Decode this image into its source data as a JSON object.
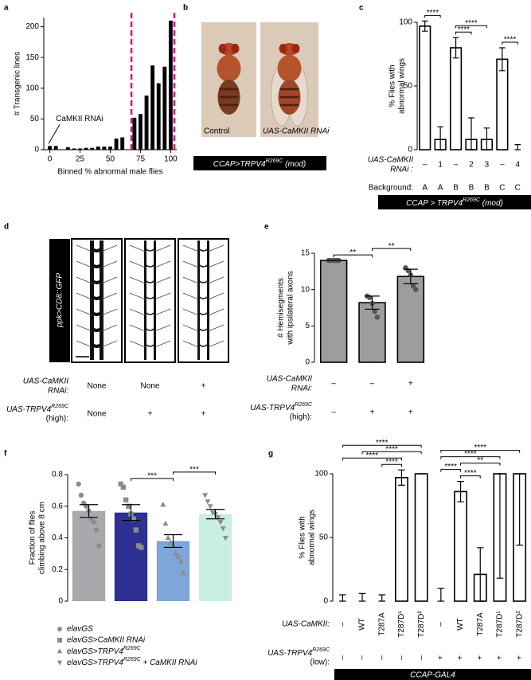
{
  "chart_data": [
    {
      "type": "histogram",
      "panel": "a",
      "ylabel": [
        "# Transgenic lines"
      ],
      "xlabel": "Binned % abnormal male flies",
      "bins": [
        -2.5,
        2.5,
        7.5,
        12.5,
        17.5,
        22.5,
        27.5,
        32.5,
        37.5,
        42.5,
        47.5,
        52.5,
        57.5,
        62.5,
        67.5,
        72.5,
        77.5,
        82.5,
        87.5,
        92.5,
        97.5,
        102.5
      ],
      "counts": [
        6,
        6,
        0,
        4,
        2,
        2,
        3,
        3,
        5,
        5,
        5,
        18,
        20,
        0,
        52,
        58,
        88,
        137,
        108,
        135,
        210
      ],
      "xlim": [
        -5,
        105
      ],
      "xticks": [
        0,
        25,
        50,
        75,
        100
      ],
      "ylim": [
        0,
        215
      ],
      "yticks": [
        0,
        50,
        100,
        150,
        200
      ],
      "color": "#000000",
      "thresholds": [
        67.5,
        103
      ],
      "threshold_color": "#e6007e",
      "annotation": "CaMKII RNAi"
    },
    {
      "type": "bar",
      "panel": "c",
      "ylabel": [
        "% Flies with",
        "abnormal wings"
      ],
      "values": [
        97,
        8,
        80,
        8,
        8,
        71,
        0
      ],
      "error_low": [
        93,
        0,
        72,
        0,
        0,
        62,
        0
      ],
      "error_high": [
        101,
        18,
        88,
        25,
        17,
        80,
        4
      ],
      "ylim": [
        0,
        100
      ],
      "yticks": [
        0,
        50,
        100
      ],
      "color": "#ffffff",
      "edge_color": "#000000",
      "rows": [
        {
          "label": [
            "UAS-CaMKII",
            "RNAi :"
          ],
          "values": [
            "–",
            "1",
            "–",
            "2",
            "3",
            "–",
            "4"
          ]
        },
        {
          "label": [
            "Background:"
          ],
          "values": [
            "A",
            "A",
            "B",
            "B",
            "B",
            "C",
            "C"
          ]
        }
      ],
      "banner": {
        "text": "CCAP > TRPV4",
        "sup": "R269C",
        "tail": " (mod)"
      },
      "significance": [
        {
          "label": "****",
          "between": [
            0,
            1
          ]
        },
        {
          "label": "****",
          "between": [
            2,
            3
          ]
        },
        {
          "label": "****",
          "between": [
            2,
            4
          ]
        },
        {
          "label": "****",
          "between": [
            5,
            6
          ]
        }
      ]
    },
    {
      "type": "bar",
      "panel": "e",
      "ylabel": [
        "# Hemisegments",
        "with ipsilateral axons"
      ],
      "values": [
        14,
        8.2,
        11.8
      ],
      "error_low": [
        14,
        7.3,
        10.8
      ],
      "error_high": [
        14,
        9.1,
        12.8
      ],
      "points": [
        [
          14,
          14,
          14,
          14,
          14
        ],
        [
          9.1,
          8.9,
          8.1,
          7,
          6.2
        ],
        [
          13,
          12.6,
          12,
          10.5,
          10
        ]
      ],
      "point_color": "#555555",
      "ylim": [
        0,
        15
      ],
      "yticks": [
        0,
        5,
        10,
        15
      ],
      "color": "#9d9d9d",
      "edge_color": "#000000",
      "rows": [
        {
          "label": [
            "UAS-CaMKII",
            "RNAi:"
          ],
          "values": [
            "–",
            "–",
            "+"
          ]
        },
        {
          "label": [
            {
              "text": "UAS-TRPV4",
              "sup": "R269C"
            },
            "(high):"
          ],
          "values": [
            "–",
            "+",
            "+"
          ]
        }
      ],
      "significance": [
        {
          "label": "**",
          "between": [
            0,
            1
          ]
        },
        {
          "label": "**",
          "between": [
            1,
            2
          ]
        }
      ]
    },
    {
      "type": "bar",
      "panel": "f",
      "ylabel": [
        "Fraction of flies",
        "climbing above 8 cm"
      ],
      "values": [
        0.57,
        0.56,
        0.38,
        0.55
      ],
      "error_low": [
        0.53,
        0.51,
        0.34,
        0.52
      ],
      "error_high": [
        0.61,
        0.61,
        0.42,
        0.58
      ],
      "colors": [
        "#a7a9ac",
        "#2e3192",
        "#7ea6d8",
        "#c8efe0"
      ],
      "edge_color": "none",
      "points": [
        [
          0.74,
          0.67,
          0.62,
          0.6,
          0.57,
          0.52,
          0.5,
          0.45,
          0.35
        ],
        [
          0.74,
          0.72,
          0.64,
          0.6,
          0.55,
          0.52,
          0.45,
          0.35,
          0.34
        ],
        [
          0.61,
          0.49,
          0.4,
          0.37,
          0.35,
          0.3,
          0.28,
          0.25,
          0.18
        ],
        [
          0.67,
          0.63,
          0.6,
          0.56,
          0.55,
          0.53,
          0.5,
          0.46,
          0.4
        ]
      ],
      "point_color": "#8c8c8c",
      "markers": [
        "circle",
        "square",
        "triangle-up",
        "triangle-down"
      ],
      "ylim": [
        0,
        0.8
      ],
      "yticks": [
        0,
        0.2,
        0.4,
        0.6,
        0.8
      ],
      "legend": [
        "elavGS",
        "elavGS>CaMKII RNAi",
        {
          "text": "elavGS>TRPV4",
          "sup": "R269C"
        },
        {
          "text": "elavGS>TRPV4",
          "sup": "R269C",
          "tail": " + CaMKII RNAi"
        }
      ],
      "significance": [
        {
          "label": "***",
          "between": [
            1,
            2
          ]
        },
        {
          "label": "***",
          "between": [
            2,
            3
          ]
        }
      ]
    },
    {
      "type": "bar",
      "panel": "g",
      "ylabel": [
        "% Flies with",
        "abnormal wings"
      ],
      "values": [
        0,
        0,
        0,
        97,
        100,
        0,
        86,
        21,
        100,
        100
      ],
      "error_low": [
        0,
        0,
        0,
        91,
        100,
        0,
        78,
        0,
        18,
        44
      ],
      "error_high": [
        5,
        6,
        5,
        103,
        100,
        10,
        94,
        42,
        100,
        100
      ],
      "ylim": [
        0,
        100
      ],
      "yticks": [
        0,
        50,
        100
      ],
      "color": "#ffffff",
      "edge_color": "#000000",
      "rows": [
        {
          "label": [
            "UAS-CaMKII:"
          ],
          "values": [
            "–",
            "WT",
            "T287A",
            "T287D¹",
            "T287D²",
            "–",
            "WT",
            "T287A",
            "T287D¹",
            "T287D²"
          ],
          "rotate": true
        },
        {
          "label": [
            {
              "text": "UAS-TRPV4",
              "sup": "R269C"
            },
            "(low):"
          ],
          "values": [
            "–",
            "–",
            "–",
            "–",
            "–",
            "+",
            "+",
            "+",
            "+",
            "+"
          ],
          "rotate": true
        }
      ],
      "banner": "CCAP-GAL4",
      "significance": [
        {
          "label": "****",
          "between": [
            0,
            4
          ]
        },
        {
          "label": "****",
          "between": [
            0,
            3
          ]
        },
        {
          "label": "****",
          "between": [
            1,
            4
          ]
        },
        {
          "label": "****",
          "between": [
            2,
            3
          ]
        },
        {
          "label": "****",
          "between": [
            5,
            9
          ]
        },
        {
          "label": "****",
          "between": [
            5,
            8
          ]
        },
        {
          "label": "**",
          "between": [
            6,
            8
          ]
        },
        {
          "label": "****",
          "between": [
            6,
            7
          ]
        },
        {
          "label": "****",
          "between": [
            5,
            6
          ]
        }
      ]
    }
  ],
  "figure": {
    "panel_b": {
      "panel": "b",
      "images": [
        "Control",
        "UAS-CaMKII RNAi"
      ],
      "banner": {
        "text": "CCAP>TRPV4",
        "sup": "R269C",
        "tail": " (mod)"
      }
    },
    "panel_d": {
      "panel": "d",
      "label": "ppk>CD8::GFP",
      "rows": [
        {
          "label": [
            "UAS-CaMKII",
            "RNAi:"
          ],
          "values": [
            "None",
            "None",
            "+"
          ]
        },
        {
          "label": [
            {
              "text": "UAS-TRPV4",
              "sup": "R269C"
            },
            "(high):"
          ],
          "values": [
            "None",
            "+",
            "+"
          ]
        }
      ]
    }
  }
}
